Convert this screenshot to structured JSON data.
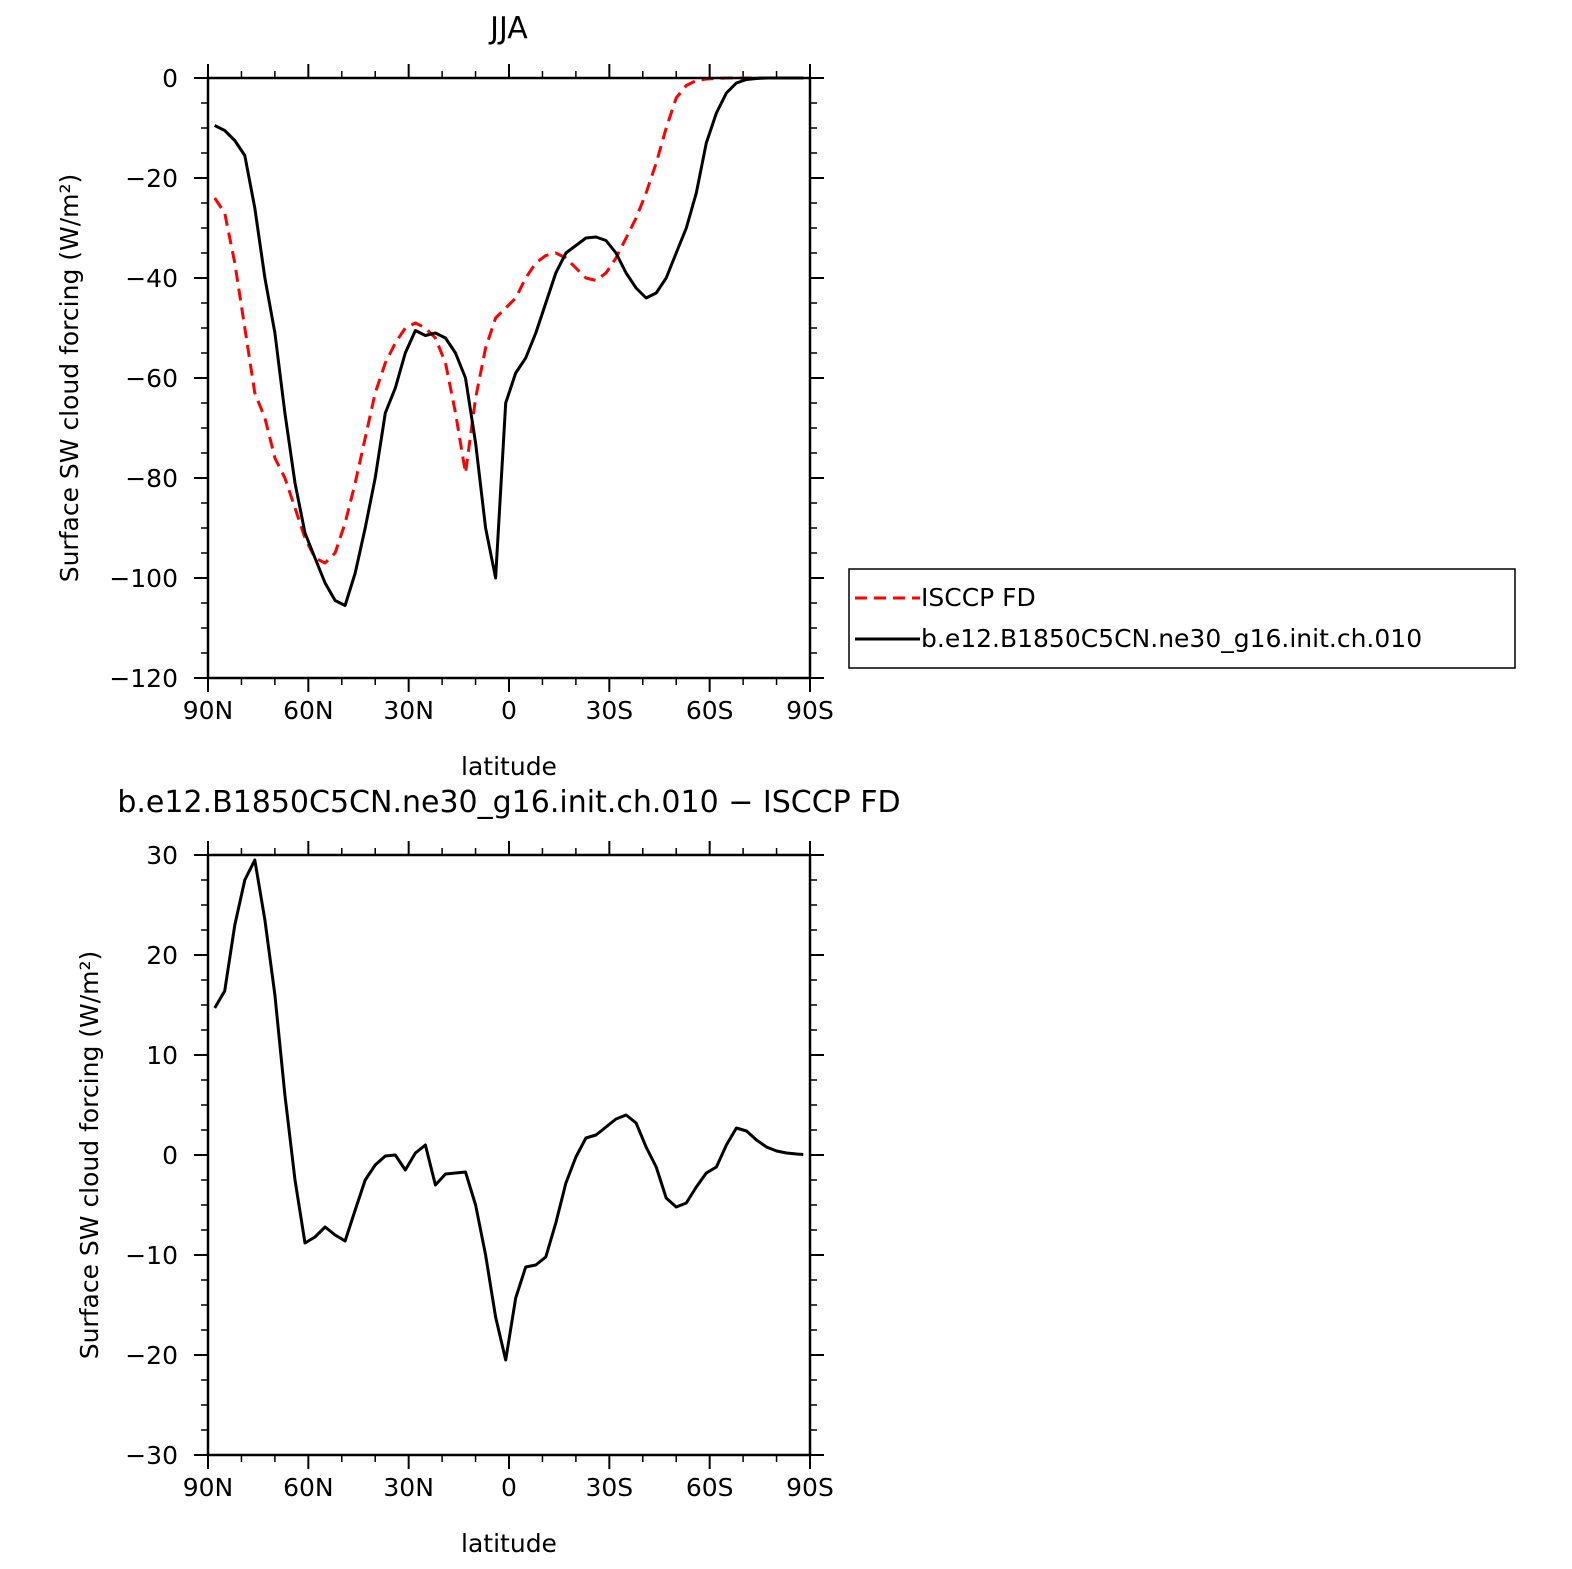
{
  "chart_data": [
    {
      "type": "line",
      "title": "JJA",
      "xlabel": "latitude",
      "ylabel": "Surface SW cloud forcing (W/m²)",
      "xlim": [
        90,
        -90
      ],
      "ylim": [
        -120,
        0
      ],
      "xticks": [
        {
          "value": 90,
          "label": "90N"
        },
        {
          "value": 60,
          "label": "60N"
        },
        {
          "value": 30,
          "label": "30N"
        },
        {
          "value": 0,
          "label": "0"
        },
        {
          "value": -30,
          "label": "30S"
        },
        {
          "value": -60,
          "label": "60S"
        },
        {
          "value": -90,
          "label": "90S"
        }
      ],
      "yticks": [
        {
          "value": 0,
          "label": "0"
        },
        {
          "value": -20,
          "label": "−20"
        },
        {
          "value": -40,
          "label": "−40"
        },
        {
          "value": -60,
          "label": "−60"
        },
        {
          "value": -80,
          "label": "−80"
        },
        {
          "value": -100,
          "label": "−100"
        },
        {
          "value": -120,
          "label": "−120"
        }
      ],
      "legend": "right",
      "series": [
        {
          "name": "ISCCP FD",
          "color": "#ff0000",
          "dash": true,
          "x": [
            88,
            85,
            82,
            79,
            76,
            73,
            70,
            67,
            64,
            61,
            58,
            55,
            52,
            49,
            46,
            43,
            40,
            37,
            34,
            31,
            28,
            25,
            22,
            19,
            16,
            13,
            10,
            7,
            4,
            1,
            -2,
            -5,
            -8,
            -11,
            -14,
            -17,
            -20,
            -23,
            -26,
            -29,
            -32,
            -35,
            -38,
            -41,
            -44,
            -47,
            -50,
            -53,
            -56,
            -59,
            -62,
            -65,
            -68,
            -71,
            -74,
            -77,
            -80,
            -83,
            -86,
            -88
          ],
          "y": [
            -24,
            -27,
            -37,
            -50,
            -63,
            -68,
            -76,
            -80,
            -86,
            -92,
            -96,
            -97,
            -95,
            -89,
            -81,
            -72,
            -63,
            -57,
            -53,
            -50,
            -49,
            -50,
            -52,
            -57,
            -67,
            -79,
            -64,
            -54,
            -48,
            -46,
            -44,
            -40,
            -37,
            -35.5,
            -35,
            -36,
            -38,
            -40,
            -40.5,
            -39,
            -36,
            -32,
            -28,
            -23,
            -17,
            -10,
            -4,
            -1.5,
            -0.5,
            -0.2,
            -0.1,
            0,
            0,
            0,
            0,
            0,
            0,
            0,
            0,
            0
          ]
        },
        {
          "name": "b.e12.B1850C5CN.ne30_g16.init.ch.010",
          "color": "#000000",
          "dash": false,
          "x": [
            88,
            85,
            82,
            79,
            76,
            73,
            70,
            67,
            64,
            61,
            58,
            55,
            52,
            49,
            46,
            43,
            40,
            37,
            34,
            31,
            28,
            25,
            22,
            19,
            16,
            13,
            10,
            7,
            4,
            1,
            -2,
            -5,
            -8,
            -11,
            -14,
            -17,
            -20,
            -23,
            -26,
            -29,
            -32,
            -35,
            -38,
            -41,
            -44,
            -47,
            -50,
            -53,
            -56,
            -59,
            -62,
            -65,
            -68,
            -71,
            -74,
            -77,
            -80,
            -83,
            -86,
            -88
          ],
          "y": [
            -9.5,
            -10.5,
            -12.5,
            -15.5,
            -26,
            -40,
            -51,
            -67,
            -81,
            -91,
            -96,
            -101,
            -104.5,
            -105.5,
            -99,
            -90,
            -80,
            -67,
            -62,
            -55,
            -50.5,
            -51.5,
            -51,
            -52,
            -55,
            -60,
            -73,
            -90,
            -100,
            -65,
            -59,
            -56,
            -51,
            -45,
            -39,
            -35,
            -33.5,
            -32,
            -31.8,
            -32.5,
            -35,
            -39,
            -42,
            -44,
            -43,
            -40,
            -35,
            -30,
            -23,
            -13,
            -7,
            -3,
            -1,
            -0.3,
            -0.1,
            0,
            0,
            0,
            0,
            0
          ]
        }
      ]
    },
    {
      "type": "line",
      "title": "b.e12.B1850C5CN.ne30_g16.init.ch.010 − ISCCP FD",
      "xlabel": "latitude",
      "ylabel": "Surface SW cloud forcing (W/m²)",
      "xlim": [
        90,
        -90
      ],
      "ylim": [
        -30,
        30
      ],
      "xticks": [
        {
          "value": 90,
          "label": "90N"
        },
        {
          "value": 60,
          "label": "60N"
        },
        {
          "value": 30,
          "label": "30N"
        },
        {
          "value": 0,
          "label": "0"
        },
        {
          "value": -30,
          "label": "30S"
        },
        {
          "value": -60,
          "label": "60S"
        },
        {
          "value": -90,
          "label": "90S"
        }
      ],
      "yticks": [
        {
          "value": 30,
          "label": "30"
        },
        {
          "value": 20,
          "label": "20"
        },
        {
          "value": 10,
          "label": "10"
        },
        {
          "value": 0,
          "label": "0"
        },
        {
          "value": -10,
          "label": "−10"
        },
        {
          "value": -20,
          "label": "−20"
        },
        {
          "value": -30,
          "label": "−30"
        }
      ],
      "series": [
        {
          "color": "#000000",
          "dash": false,
          "x": [
            88,
            85,
            82,
            79,
            76,
            73,
            70,
            67,
            64,
            61,
            58,
            55,
            52,
            49,
            46,
            43,
            40,
            37,
            34,
            31,
            28,
            25,
            22,
            19,
            16,
            13,
            10,
            7,
            4,
            1,
            -2,
            -5,
            -8,
            -11,
            -14,
            -17,
            -20,
            -23,
            -26,
            -29,
            -32,
            -35,
            -38,
            -41,
            -44,
            -47,
            -50,
            -53,
            -56,
            -59,
            -62,
            -65,
            -68,
            -71,
            -74,
            -77,
            -80,
            -83,
            -86,
            -88
          ],
          "y": [
            14.7,
            16.4,
            23,
            27.5,
            29.5,
            23.5,
            16,
            6,
            -2.5,
            -8.8,
            -8.2,
            -7.2,
            -8,
            -8.6,
            -5.5,
            -2.5,
            -1,
            -0.1,
            0,
            -1.5,
            0.2,
            1,
            -3,
            -1.9,
            -1.8,
            -1.7,
            -5,
            -10,
            -16.2,
            -20.5,
            -14.3,
            -11.2,
            -11,
            -10.2,
            -6.8,
            -2.8,
            -0.2,
            1.7,
            2.0,
            2.8,
            3.6,
            4.0,
            3.2,
            0.8,
            -1.2,
            -4.3,
            -5.2,
            -4.8,
            -3.2,
            -1.8,
            -1.2,
            1.0,
            2.7,
            2.4,
            1.5,
            0.8,
            0.4,
            0.2,
            0.1,
            0.05
          ]
        }
      ]
    }
  ]
}
